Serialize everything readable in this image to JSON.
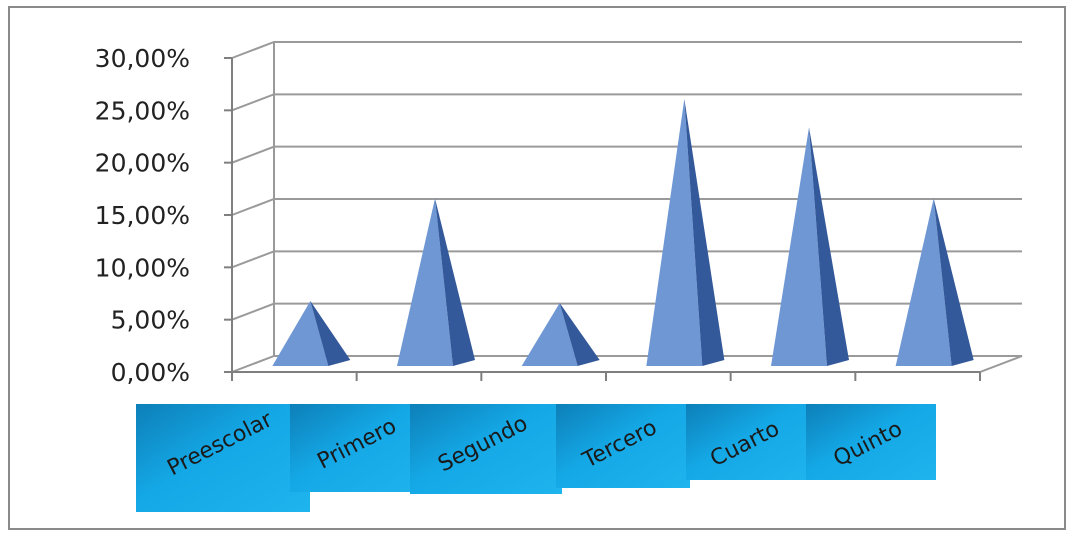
{
  "chart_data": {
    "type": "bar",
    "bar_shape": "pyramid-3d",
    "categories": [
      "Preescolar",
      "Primero",
      "Segundo",
      "Tercero",
      "Cuarto",
      "Quinto"
    ],
    "values": [
      6.5,
      16.3,
      6.3,
      25.8,
      23.1,
      16.3
    ],
    "unit": "%",
    "ylim": [
      0,
      30
    ],
    "yticks": [
      "0,00%",
      "5,00%",
      "10,00%",
      "15,00%",
      "20,00%",
      "25,00%",
      "30,00%"
    ],
    "grid": true,
    "legend": "none",
    "title": "",
    "xlabel": "",
    "ylabel": "",
    "colors": {
      "bar_light": "#6f97d4",
      "bar_dark": "#34599a",
      "category_fill": "#14a8e6",
      "gridline": "#9a9a9a"
    }
  }
}
